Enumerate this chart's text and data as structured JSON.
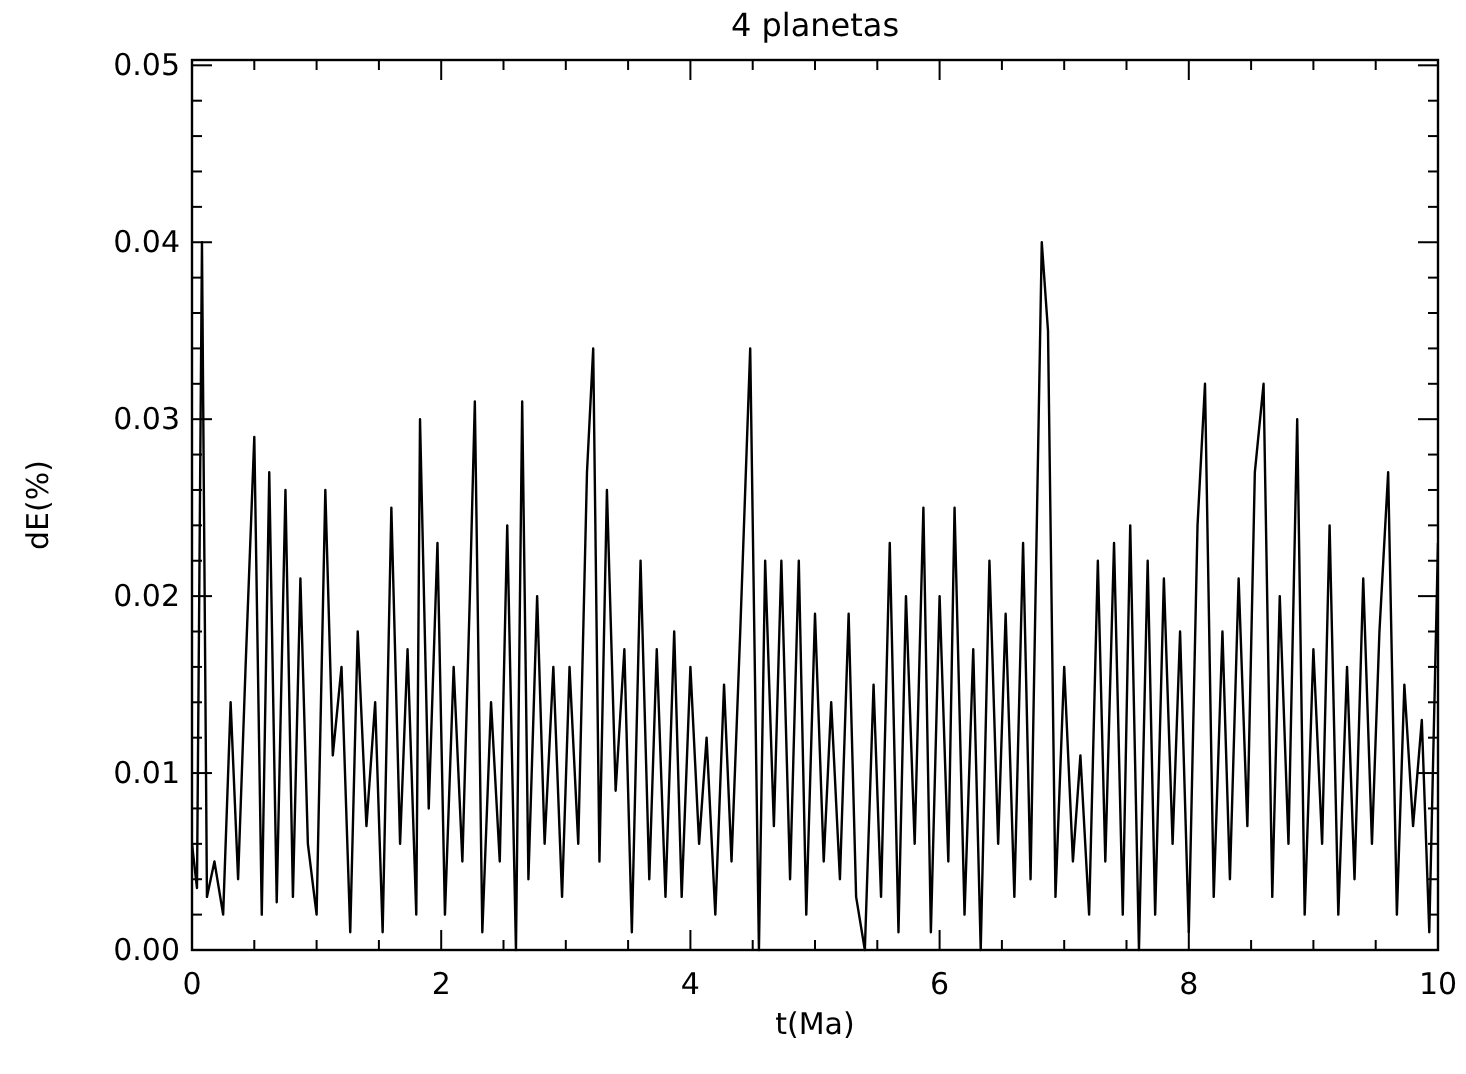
{
  "chart_data": {
    "type": "line",
    "title": "4 planetas",
    "xlabel": "t(Ma)",
    "ylabel": "dE(%)",
    "xlim": [
      0,
      10
    ],
    "ylim": [
      0,
      0.0503
    ],
    "xticks": [
      0,
      {
        "value": 0.5,
        "label": null
      },
      {
        "value": 1,
        "label": null
      },
      {
        "value": 1.5,
        "label": null
      },
      2,
      {
        "value": 2.5,
        "label": null
      },
      {
        "value": 3,
        "label": null
      },
      {
        "value": 3.5,
        "label": null
      },
      4,
      {
        "value": 4.5,
        "label": null
      },
      {
        "value": 5,
        "label": null
      },
      {
        "value": 5.5,
        "label": null
      },
      6,
      {
        "value": 6.5,
        "label": null
      },
      {
        "value": 7,
        "label": null
      },
      {
        "value": 7.5,
        "label": null
      },
      8,
      {
        "value": 8.5,
        "label": null
      },
      {
        "value": 9,
        "label": null
      },
      {
        "value": 9.5,
        "label": null
      },
      10
    ],
    "yticks": [
      {
        "value": 0,
        "label": "0.00"
      },
      {
        "value": 0.002,
        "label": null
      },
      {
        "value": 0.004,
        "label": null
      },
      {
        "value": 0.006,
        "label": null
      },
      {
        "value": 0.008,
        "label": null
      },
      {
        "value": 0.01,
        "label": "0.01"
      },
      {
        "value": 0.012,
        "label": null
      },
      {
        "value": 0.014,
        "label": null
      },
      {
        "value": 0.016,
        "label": null
      },
      {
        "value": 0.018,
        "label": null
      },
      {
        "value": 0.02,
        "label": "0.02"
      },
      {
        "value": 0.022,
        "label": null
      },
      {
        "value": 0.024,
        "label": null
      },
      {
        "value": 0.026,
        "label": null
      },
      {
        "value": 0.028,
        "label": null
      },
      {
        "value": 0.03,
        "label": "0.03"
      },
      {
        "value": 0.032,
        "label": null
      },
      {
        "value": 0.034,
        "label": null
      },
      {
        "value": 0.036,
        "label": null
      },
      {
        "value": 0.038,
        "label": null
      },
      {
        "value": 0.04,
        "label": "0.04"
      },
      {
        "value": 0.042,
        "label": null
      },
      {
        "value": 0.044,
        "label": null
      },
      {
        "value": 0.046,
        "label": null
      },
      {
        "value": 0.048,
        "label": null
      },
      {
        "value": 0.05,
        "label": "0.05"
      }
    ],
    "marker": "none",
    "line_style": "solid",
    "series": [
      {
        "color": "#000000",
        "x": [
          0,
          0.04,
          0.08,
          0.12,
          0.18,
          0.25,
          0.31,
          0.37,
          0.43,
          0.5,
          0.56,
          0.62,
          0.68,
          0.75,
          0.81,
          0.87,
          0.93,
          1.0,
          1.07,
          1.13,
          1.2,
          1.27,
          1.33,
          1.4,
          1.47,
          1.53,
          1.6,
          1.67,
          1.73,
          1.8,
          1.83,
          1.9,
          1.97,
          2.03,
          2.1,
          2.17,
          2.23,
          2.27,
          2.33,
          2.4,
          2.47,
          2.53,
          2.6,
          2.65,
          2.7,
          2.77,
          2.83,
          2.9,
          2.97,
          3.03,
          3.1,
          3.17,
          3.22,
          3.27,
          3.33,
          3.4,
          3.47,
          3.53,
          3.6,
          3.67,
          3.73,
          3.8,
          3.87,
          3.93,
          4.0,
          4.07,
          4.13,
          4.2,
          4.27,
          4.33,
          4.4,
          4.48,
          4.55,
          4.6,
          4.67,
          4.73,
          4.8,
          4.87,
          4.93,
          5.0,
          5.07,
          5.13,
          5.2,
          5.27,
          5.33,
          5.4,
          5.47,
          5.53,
          5.6,
          5.67,
          5.73,
          5.8,
          5.87,
          5.93,
          6.0,
          6.07,
          6.12,
          6.2,
          6.27,
          6.33,
          6.4,
          6.47,
          6.53,
          6.6,
          6.67,
          6.73,
          6.82,
          6.87,
          6.93,
          7.0,
          7.07,
          7.13,
          7.2,
          7.27,
          7.33,
          7.4,
          7.47,
          7.53,
          7.6,
          7.67,
          7.73,
          7.8,
          7.87,
          7.93,
          8.0,
          8.07,
          8.13,
          8.2,
          8.27,
          8.33,
          8.4,
          8.47,
          8.53,
          8.6,
          8.67,
          8.73,
          8.8,
          8.87,
          8.93,
          9.0,
          9.07,
          9.13,
          9.2,
          9.27,
          9.33,
          9.4,
          9.47,
          9.53,
          9.6,
          9.67,
          9.73,
          9.8,
          9.87,
          9.93,
          10.0
        ],
        "values": [
          0.006,
          0.0035,
          0.04,
          0.003,
          0.005,
          0.002,
          0.014,
          0.004,
          0.016,
          0.029,
          0.002,
          0.027,
          0.0027,
          0.026,
          0.003,
          0.021,
          0.006,
          0.002,
          0.026,
          0.011,
          0.016,
          0.001,
          0.018,
          0.007,
          0.014,
          0.001,
          0.025,
          0.006,
          0.017,
          0.002,
          0.03,
          0.008,
          0.023,
          0.002,
          0.016,
          0.005,
          0.02,
          0.031,
          0.001,
          0.014,
          0.005,
          0.024,
          0.0,
          0.031,
          0.004,
          0.02,
          0.006,
          0.016,
          0.003,
          0.016,
          0.006,
          0.027,
          0.034,
          0.005,
          0.026,
          0.009,
          0.017,
          0.001,
          0.022,
          0.004,
          0.017,
          0.003,
          0.018,
          0.003,
          0.016,
          0.006,
          0.012,
          0.002,
          0.015,
          0.005,
          0.018,
          0.034,
          0.0,
          0.022,
          0.007,
          0.022,
          0.004,
          0.022,
          0.002,
          0.019,
          0.005,
          0.014,
          0.004,
          0.019,
          0.003,
          0.0,
          0.015,
          0.003,
          0.023,
          0.001,
          0.02,
          0.006,
          0.025,
          0.001,
          0.02,
          0.005,
          0.025,
          0.002,
          0.017,
          0.0,
          0.022,
          0.006,
          0.019,
          0.003,
          0.023,
          0.004,
          0.04,
          0.035,
          0.003,
          0.016,
          0.005,
          0.011,
          0.002,
          0.022,
          0.005,
          0.023,
          0.002,
          0.024,
          0.0,
          0.022,
          0.002,
          0.021,
          0.006,
          0.018,
          0.001,
          0.024,
          0.032,
          0.003,
          0.018,
          0.004,
          0.021,
          0.007,
          0.027,
          0.032,
          0.003,
          0.02,
          0.006,
          0.03,
          0.002,
          0.017,
          0.006,
          0.024,
          0.002,
          0.016,
          0.004,
          0.021,
          0.006,
          0.018,
          0.027,
          0.002,
          0.015,
          0.007,
          0.013,
          0.001,
          0.023
        ]
      }
    ]
  }
}
